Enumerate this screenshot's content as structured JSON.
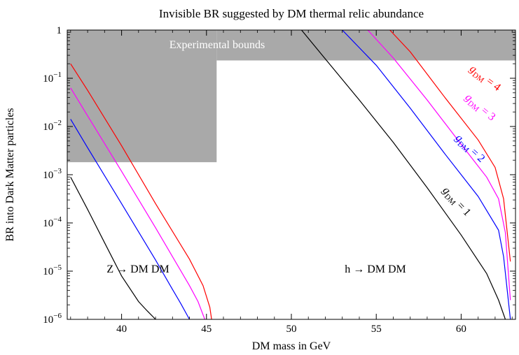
{
  "chart_data": {
    "type": "line",
    "title": "Invisible BR suggested by DM thermal relic abundance",
    "xlabel": "DM mass in GeV",
    "ylabel": "BR into Dark Matter particles",
    "xlim": [
      36.8,
      63.2
    ],
    "ylim_log10": [
      -6,
      0
    ],
    "y_scale": "log",
    "x_ticks": [
      "40",
      "45",
      "50",
      "55",
      "60"
    ],
    "x_tick_values": [
      40,
      45,
      50,
      55,
      60
    ],
    "y_ticks": [
      {
        "base": "10",
        "exp": "−6",
        "value": -6
      },
      {
        "base": "10",
        "exp": "−5",
        "value": -5
      },
      {
        "base": "10",
        "exp": "−4",
        "value": -4
      },
      {
        "base": "10",
        "exp": "−3",
        "value": -3
      },
      {
        "base": "10",
        "exp": "−2",
        "value": -2
      },
      {
        "base": "10",
        "exp": "−1",
        "value": -1
      },
      {
        "base": "1",
        "exp": "",
        "value": 0
      }
    ],
    "excluded_region": {
      "label": "Experimental bounds",
      "color": "#a9a9a9",
      "x_ranges": [
        [
          36.8,
          45.6
        ],
        [
          45.6,
          63.2
        ]
      ],
      "log10_lower": [
        -2.74,
        -0.63
      ]
    },
    "annotations": [
      {
        "text": "Z → DM DM",
        "x": 40.5,
        "log10_y": -4.88
      },
      {
        "text": "h → DM DM",
        "x": 54.1,
        "log10_y": -4.88
      }
    ],
    "series": [
      {
        "name": "gDM = 1",
        "g": "g",
        "sub": "DM",
        "rest": " = 1",
        "color": "#000000",
        "label_x": 59.6,
        "label_log10_y": -3.6,
        "label_angle": 47,
        "segments": [
          {
            "x": [
              37.0,
              38.0,
              39.0,
              40.0,
              41.0,
              41.5,
              42.0
            ],
            "log10_y": [
              -3.05,
              -3.72,
              -4.41,
              -5.1,
              -5.63,
              -5.82,
              -6.0
            ]
          },
          {
            "x": [
              50.6,
              52.0,
              54.0,
              56.0,
              58.0,
              60.0,
              61.5,
              62.2,
              62.6
            ],
            "log10_y": [
              0.0,
              -0.6,
              -1.45,
              -2.33,
              -3.27,
              -4.25,
              -5.05,
              -5.6,
              -6.0
            ]
          }
        ]
      },
      {
        "name": "gDM = 2",
        "g": "g",
        "sub": "DM",
        "rest": " = 2",
        "color": "#0000ff",
        "label_x": 60.4,
        "label_log10_y": -2.5,
        "label_angle": 43,
        "segments": [
          {
            "x": [
              37.0,
              38.0,
              40.0,
              42.0,
              43.0,
              43.5,
              44.0
            ],
            "log10_y": [
              -1.85,
              -2.44,
              -3.6,
              -4.77,
              -5.38,
              -5.68,
              -6.0
            ]
          },
          {
            "x": [
              53.0,
              55.0,
              57.0,
              59.0,
              61.0,
              62.2,
              62.5,
              62.9
            ],
            "log10_y": [
              0.0,
              -0.73,
              -1.62,
              -2.55,
              -3.45,
              -4.15,
              -4.7,
              -6.0
            ]
          }
        ]
      },
      {
        "name": "gDM = 3",
        "g": "g",
        "sub": "DM",
        "rest": " = 3",
        "color": "#ff00ff",
        "label_x": 61.0,
        "label_log10_y": -1.65,
        "label_angle": 40,
        "segments": [
          {
            "x": [
              37.0,
              38.0,
              40.0,
              42.0,
              44.0,
              44.5,
              44.9
            ],
            "log10_y": [
              -1.2,
              -1.78,
              -2.93,
              -4.1,
              -5.3,
              -5.63,
              -6.0
            ]
          },
          {
            "x": [
              54.5,
              56.0,
              58.0,
              60.0,
              61.5,
              62.2,
              62.6,
              62.9
            ],
            "log10_y": [
              0.0,
              -0.58,
              -1.45,
              -2.37,
              -3.05,
              -3.5,
              -4.2,
              -5.6
            ]
          }
        ]
      },
      {
        "name": "gDM = 4",
        "g": "g",
        "sub": "DM",
        "rest": " = 4",
        "color": "#ff0000",
        "label_x": 61.3,
        "label_log10_y": -1.05,
        "label_angle": 37,
        "segments": [
          {
            "x": [
              37.0,
              38.0,
              40.0,
              42.0,
              44.0,
              44.8,
              45.2,
              45.3
            ],
            "log10_y": [
              -0.7,
              -1.25,
              -2.4,
              -3.6,
              -4.75,
              -5.3,
              -5.75,
              -6.0
            ]
          },
          {
            "x": [
              55.8,
              57.0,
              59.0,
              61.0,
              62.0,
              62.5,
              62.9
            ],
            "log10_y": [
              0.0,
              -0.45,
              -1.38,
              -2.28,
              -2.85,
              -3.5,
              -4.8
            ]
          }
        ]
      }
    ]
  }
}
